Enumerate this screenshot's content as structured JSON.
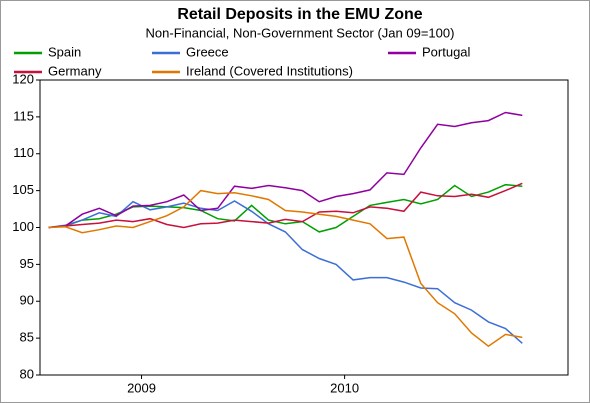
{
  "chart_data": {
    "type": "line",
    "title": "Retail Deposits in the EMU Zone",
    "subtitle": "Non-Financial, Non-Government Sector (Jan 09=100)",
    "x": [
      2009.042,
      2009.125,
      2009.208,
      2009.292,
      2009.375,
      2009.458,
      2009.542,
      2009.625,
      2009.708,
      2009.792,
      2009.875,
      2009.958,
      2010.042,
      2010.125,
      2010.208,
      2010.292,
      2010.375,
      2010.458,
      2010.542,
      2010.625,
      2010.708,
      2010.792,
      2010.875,
      2010.958,
      2011.042,
      2011.125,
      2011.208,
      2011.292,
      2011.375
    ],
    "series": [
      {
        "name": "Spain",
        "color": "#00a000",
        "values": [
          100,
          100.2,
          101,
          101.2,
          101.8,
          102.8,
          102.9,
          102.8,
          102.7,
          102.3,
          101.2,
          100.9,
          103,
          101,
          100.5,
          100.8,
          99.4,
          100,
          101.5,
          103,
          103.4,
          103.8,
          103.2,
          103.8,
          105.7,
          104.2,
          104.8,
          105.8,
          105.6
        ]
      },
      {
        "name": "Greece",
        "color": "#3c6fd6",
        "values": [
          100,
          100.3,
          101,
          102,
          101.5,
          103.5,
          102.4,
          102.8,
          103.3,
          102.6,
          102.3,
          103.6,
          102.2,
          100.5,
          99.4,
          97,
          95.8,
          95,
          92.9,
          93.2,
          93.2,
          92.6,
          91.8,
          91.7,
          89.8,
          88.8,
          87.2,
          86.3,
          84.3
        ]
      },
      {
        "name": "Portugal",
        "color": "#9000a0",
        "values": [
          100,
          100.2,
          101.8,
          102.6,
          101.6,
          102.9,
          103,
          103.5,
          104.4,
          102.3,
          102.6,
          105.6,
          105.3,
          105.7,
          105.4,
          105,
          103.5,
          104.2,
          104.6,
          105.1,
          107.4,
          107.2,
          110.8,
          114,
          113.7,
          114.2,
          114.5,
          115.6,
          115.2
        ]
      },
      {
        "name": "Germany",
        "color": "#c8103c",
        "values": [
          100,
          100.2,
          100.4,
          100.6,
          101,
          100.8,
          101.2,
          100.4,
          100,
          100.5,
          100.6,
          101,
          100.8,
          100.6,
          101.1,
          100.8,
          102.1,
          102.2,
          102,
          102.8,
          102.6,
          102.2,
          104.8,
          104.3,
          104.2,
          104.5,
          104.1,
          105,
          106
        ]
      },
      {
        "name": "Ireland (Covered Institutions)",
        "color": "#e07800",
        "values": [
          100,
          100.1,
          99.3,
          99.7,
          100.2,
          100,
          100.8,
          101.6,
          102.8,
          105,
          104.6,
          104.7,
          104.3,
          103.8,
          102.3,
          102.1,
          101.8,
          101.5,
          101,
          100.5,
          98.5,
          98.7,
          92.4,
          89.8,
          88.3,
          85.7,
          83.9,
          85.5,
          85.1
        ]
      }
    ],
    "xlim": [
      2009,
      2011.6
    ],
    "xticks": [
      {
        "value": 2009.5,
        "label": "2009"
      },
      {
        "value": 2010.5,
        "label": "2010"
      }
    ],
    "ylim": [
      80,
      120
    ],
    "yticks": [
      80,
      85,
      90,
      95,
      100,
      105,
      110,
      115,
      120
    ],
    "grid": false
  }
}
